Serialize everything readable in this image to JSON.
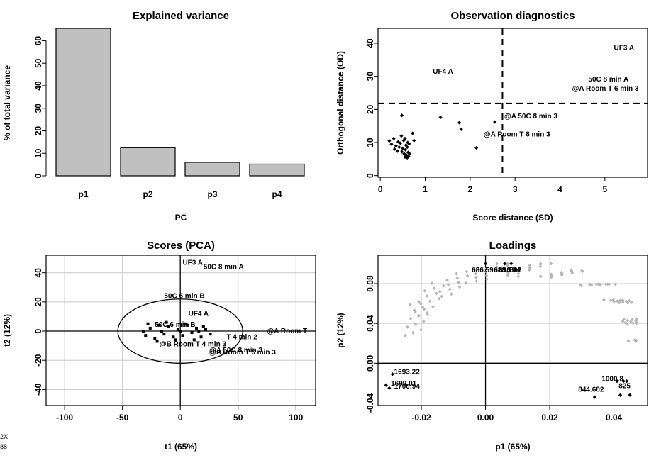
{
  "chart_data": [
    {
      "type": "bar",
      "title": "Explained variance",
      "xlabel": "PC",
      "ylabel": "% of total variance",
      "categories": [
        "p1",
        "p2",
        "p3",
        "p4"
      ],
      "values": [
        65.5,
        12.5,
        6.0,
        5.2
      ],
      "ylim": [
        0,
        65.5
      ],
      "yticks": [
        "0",
        "10",
        "20",
        "30",
        "40",
        "50",
        "60"
      ],
      "bar_color": "#c0c0c0"
    },
    {
      "type": "scatter",
      "title": "Observation diagnostics",
      "xlabel": "Score distance (SD)",
      "ylabel": "Orthogonal distance (OD)",
      "xlim": [
        -0.05,
        5.95
      ],
      "ylim": [
        -0.5,
        44.5
      ],
      "xticks": [
        "0",
        "1",
        "2",
        "3",
        "4",
        "5"
      ],
      "yticks": [
        "0",
        "10",
        "20",
        "30",
        "40"
      ],
      "cutoff_sd": 2.72,
      "cutoff_od": 21.8,
      "points": [
        [
          0.2,
          10.5
        ],
        [
          0.25,
          9.5
        ],
        [
          0.3,
          11.2
        ],
        [
          0.32,
          8.0
        ],
        [
          0.35,
          9.0
        ],
        [
          0.38,
          7.4
        ],
        [
          0.4,
          10.2
        ],
        [
          0.42,
          8.6
        ],
        [
          0.45,
          9.8
        ],
        [
          0.47,
          12.0
        ],
        [
          0.48,
          7.2
        ],
        [
          0.5,
          8.2
        ],
        [
          0.52,
          10.6
        ],
        [
          0.53,
          6.6
        ],
        [
          0.55,
          11.2
        ],
        [
          0.55,
          5.6
        ],
        [
          0.56,
          7.8
        ],
        [
          0.57,
          9.2
        ],
        [
          0.58,
          6.2
        ],
        [
          0.6,
          8.6
        ],
        [
          0.6,
          5.4
        ],
        [
          0.61,
          10.0
        ],
        [
          0.62,
          7.0
        ],
        [
          0.63,
          5.8
        ],
        [
          0.64,
          9.6
        ],
        [
          0.65,
          6.6
        ],
        [
          0.72,
          12.8
        ],
        [
          0.75,
          10.6
        ],
        [
          0.48,
          18.2
        ],
        [
          1.34,
          17.6
        ],
        [
          1.76,
          16.0
        ],
        [
          1.8,
          14.0
        ],
        [
          2.14,
          8.4
        ],
        [
          2.55,
          16.2
        ]
      ],
      "labels": [
        {
          "text": "UF3 A",
          "x": 5.2,
          "y": 38.0
        },
        {
          "text": "UF4 A",
          "x": 1.17,
          "y": 30.8
        },
        {
          "text": "50C 8 min A",
          "x": 4.63,
          "y": 28.4
        },
        {
          "text": "@A Room T 6 min 3",
          "x": 4.27,
          "y": 25.6
        },
        {
          "text": "@A 50C 8 min 3",
          "x": 2.76,
          "y": 17.3
        },
        {
          "text": "@A Room T 8 min 3",
          "x": 2.3,
          "y": 11.8
        }
      ]
    },
    {
      "type": "scatter",
      "title": "Scores (PCA)",
      "xlabel": "t1 (65%)",
      "ylabel": "t2 (12%)",
      "xlim": [
        -116,
        117
      ],
      "ylim": [
        -51,
        52
      ],
      "xticks": [
        "-100",
        "-50",
        "0",
        "50",
        "100"
      ],
      "yticks": [
        "-40",
        "-20",
        "0",
        "20",
        "40"
      ],
      "ellipse": {
        "cx": 0,
        "cy": 0,
        "rx": 54,
        "ry": 22
      },
      "labels": [
        {
          "text": "UF3 A",
          "x": 2,
          "y": 45.5
        },
        {
          "text": "50C 8 min A",
          "x": 20,
          "y": 42.5
        },
        {
          "text": "50C 6 min B",
          "x": -14,
          "y": 22.5
        },
        {
          "text": "UF4 A",
          "x": 7,
          "y": 10.5
        },
        {
          "text": "50C 6 min B",
          "x": -22,
          "y": 3
        },
        {
          "text": "@A Room T",
          "x": 75,
          "y": -1.5
        },
        {
          "text": "T 4 min 2",
          "x": 40,
          "y": -5.5
        },
        {
          "text": "@A 50C 8 min 3",
          "x": 25,
          "y": -14.5
        },
        {
          "text": "@A Room T 6 min 3",
          "x": 25,
          "y": -16
        },
        {
          "text": "@B Room T 4 min 3",
          "x": -18,
          "y": -10.5
        }
      ]
    },
    {
      "type": "scatter",
      "title": "Loadings",
      "xlabel": "p1 (65%)",
      "ylabel": "p2 (12%)",
      "xlim": [
        -0.0335,
        0.0505
      ],
      "ylim": [
        -0.0425,
        0.1085
      ],
      "xticks": [
        "-0.02",
        "0.00",
        "0.02",
        "0.04"
      ],
      "yticks": [
        "-0.04",
        "0.00",
        "0.04",
        "0.08"
      ],
      "labels": [
        {
          "text": "1693.22",
          "x": -0.0285,
          "y": -0.0108
        },
        {
          "text": "1699.01",
          "x": -0.0295,
          "y": -0.0225
        },
        {
          "text": "1700.94",
          "x": -0.0285,
          "y": -0.0255
        },
        {
          "text": "686.59",
          "x": -0.0043,
          "y": 0.0915
        },
        {
          "text": "688.51",
          "x": 0.0026,
          "y": 0.0915
        },
        {
          "text": "690.44",
          "x": 0.0041,
          "y": 0.0915
        },
        {
          "text": "692",
          "x": 0.0075,
          "y": 0.0915
        },
        {
          "text": "844.682",
          "x": 0.0289,
          "y": -0.0285
        },
        {
          "text": "1000.8",
          "x": 0.0362,
          "y": -0.018
        },
        {
          "text": "825",
          "x": 0.0415,
          "y": -0.025
        }
      ]
    }
  ],
  "margin_text": [
    "2X",
    "88"
  ]
}
